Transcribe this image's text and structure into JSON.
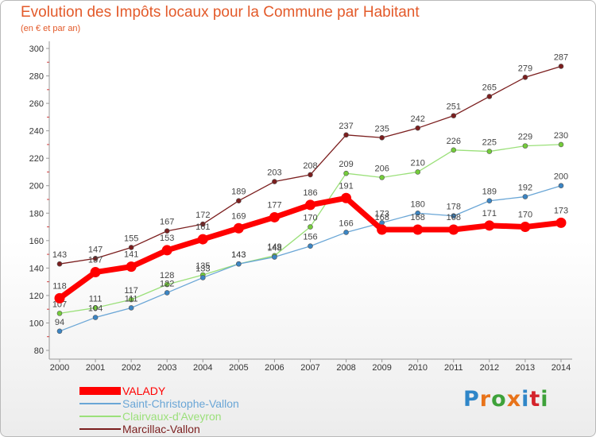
{
  "title": "Evolution des Impôts locaux pour la Commune par Habitant",
  "subtitle": "(en € et par an)",
  "logo": {
    "chars": [
      "P",
      "r",
      "o",
      "x",
      "i",
      "t",
      "i"
    ],
    "colors": [
      "#2f86c8",
      "#e8731a",
      "#3ea23a",
      "#e8731a",
      "#2f86c8",
      "#d4232b",
      "#3ea23a"
    ]
  },
  "chart_data": {
    "type": "line",
    "title": "Evolution des Impôts locaux pour la Commune par Habitant",
    "subtitle": "(en € et par an)",
    "xlabel": "",
    "ylabel": "",
    "categories": [
      "2000",
      "2001",
      "2002",
      "2003",
      "2004",
      "2005",
      "2006",
      "2007",
      "2008",
      "2009",
      "2010",
      "2011",
      "2012",
      "2013",
      "2014"
    ],
    "ylim": [
      80,
      300
    ],
    "yticks": [
      80,
      100,
      120,
      140,
      160,
      180,
      200,
      220,
      240,
      260,
      280,
      300
    ],
    "grid": false,
    "legend_position": "bottom-left",
    "series": [
      {
        "name": "Marcillac-Vallon",
        "color": "#7b1e1e",
        "values": [
          143,
          147,
          155,
          167,
          172,
          189,
          203,
          208,
          237,
          235,
          242,
          251,
          265,
          279,
          287
        ],
        "weight": "thin"
      },
      {
        "name": "Clairvaux-d'Aveyron",
        "color": "#9be07a",
        "dot": "#74cc3a",
        "values": [
          107,
          111,
          117,
          128,
          135,
          143,
          149,
          170,
          209,
          206,
          210,
          226,
          225,
          229,
          230
        ],
        "weight": "thin"
      },
      {
        "name": "Saint-Christophe-Vallon",
        "color": "#6aa6d6",
        "dot": "#3b85c4",
        "values": [
          94,
          104,
          111,
          122,
          133,
          143,
          148,
          156,
          166,
          173,
          180,
          178,
          189,
          192,
          200
        ],
        "weight": "thin"
      },
      {
        "name": "VALADY",
        "color": "#ff0000",
        "values": [
          118,
          137,
          141,
          153,
          161,
          169,
          177,
          186,
          191,
          168,
          168,
          168,
          171,
          170,
          173
        ],
        "weight": "thick"
      }
    ],
    "legend_order": [
      "VALADY",
      "Saint-Christophe-Vallon",
      "Clairvaux-d'Aveyron",
      "Marcillac-Vallon"
    ]
  }
}
